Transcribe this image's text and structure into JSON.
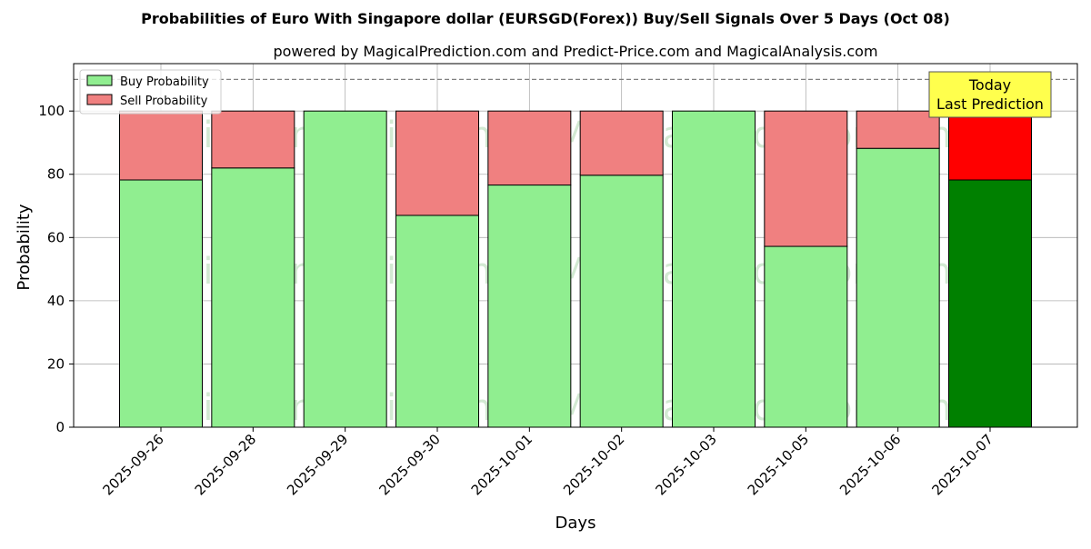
{
  "chart_data": {
    "type": "bar",
    "stacked": true,
    "title": "Probabilities of Euro With Singapore dollar (EURSGD(Forex)) Buy/Sell Signals Over 5 Days (Oct 08)",
    "subtitle": "powered by MagicalPrediction.com and Predict-Price.com and MagicalAnalysis.com",
    "xlabel": "Days",
    "ylabel": "Probability",
    "ylim": [
      0,
      115
    ],
    "yticks": [
      0,
      20,
      40,
      60,
      80,
      100
    ],
    "grid": true,
    "legend_placement": "top-left",
    "reference_line": 110,
    "categories": [
      "2025-09-26",
      "2025-09-28",
      "2025-09-29",
      "2025-09-30",
      "2025-10-01",
      "2025-10-02",
      "2025-10-03",
      "2025-10-05",
      "2025-10-06",
      "2025-10-07"
    ],
    "series": [
      {
        "name": "Buy Probability",
        "values": [
          78.2,
          82.0,
          100.0,
          67.0,
          76.6,
          79.7,
          100.0,
          57.2,
          88.2,
          78.2
        ],
        "color": "#90ee90",
        "highlight_color": "#008000"
      },
      {
        "name": "Sell Probability",
        "values": [
          21.8,
          18.0,
          0.0,
          33.0,
          23.4,
          20.3,
          0.0,
          42.8,
          11.8,
          21.8
        ],
        "color": "#f08080",
        "highlight_color": "#ff0000"
      }
    ],
    "highlight_index": 9,
    "annotation": {
      "line1": "Today",
      "line2": "Last Prediction",
      "color": "#ffff4d"
    },
    "watermarks": [
      "MagicalAnalysis.com",
      "MagicalPrediction.com"
    ]
  }
}
